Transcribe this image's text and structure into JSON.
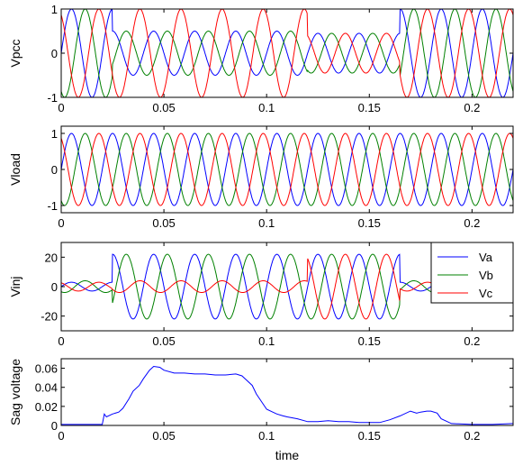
{
  "figure": {
    "xlabel": "time",
    "x_ticks": [
      0,
      0.05,
      0.1,
      0.15,
      0.2
    ],
    "x_tick_labels": [
      "0",
      "0.05",
      "0.1",
      "0.15",
      "0.2"
    ],
    "xlim": [
      0,
      0.22
    ]
  },
  "colors": {
    "Va": "#0000ff",
    "Vb": "#008000",
    "Vc": "#ff0000",
    "sag": "#0000ff"
  },
  "legend": {
    "entries": [
      "Va",
      "Vb",
      "Vc"
    ],
    "placement": "top-right of Vinj panel"
  },
  "chart_data": [
    {
      "type": "line",
      "ylabel": "Vpcc",
      "xlim": [
        0,
        0.22
      ],
      "ylim": [
        -1,
        1
      ],
      "y_ticks": [
        -1,
        0,
        1
      ],
      "y_tick_labels": [
        "-1",
        "0",
        "1"
      ],
      "series": [
        {
          "name": "Va",
          "waveform": {
            "frequency_hz": 50,
            "phase_deg": 0,
            "segments": [
              {
                "x": [
                  0,
                  0.025
                ],
                "amplitude": 1.0
              },
              {
                "x": [
                  0.025,
                  0.12
                ],
                "amplitude": 0.5
              },
              {
                "x": [
                  0.12,
                  0.165
                ],
                "amplitude": 0.45
              },
              {
                "x": [
                  0.165,
                  0.22
                ],
                "amplitude": 1.0
              }
            ]
          }
        },
        {
          "name": "Vb",
          "waveform": {
            "frequency_hz": 50,
            "phase_deg": -120,
            "segments": [
              {
                "x": [
                  0,
                  0.025
                ],
                "amplitude": 1.0
              },
              {
                "x": [
                  0.025,
                  0.12
                ],
                "amplitude": 0.5
              },
              {
                "x": [
                  0.12,
                  0.165
                ],
                "amplitude": 0.45
              },
              {
                "x": [
                  0.165,
                  0.22
                ],
                "amplitude": 1.0
              }
            ]
          }
        },
        {
          "name": "Vc",
          "waveform": {
            "frequency_hz": 50,
            "phase_deg": 120,
            "segments": [
              {
                "x": [
                  0,
                  0.025
                ],
                "amplitude": 1.0
              },
              {
                "x": [
                  0.025,
                  0.12
                ],
                "amplitude": 1.0
              },
              {
                "x": [
                  0.12,
                  0.165
                ],
                "amplitude": 0.45
              },
              {
                "x": [
                  0.165,
                  0.22
                ],
                "amplitude": 1.0
              }
            ]
          }
        }
      ]
    },
    {
      "type": "line",
      "ylabel": "Vload",
      "xlim": [
        0,
        0.22
      ],
      "ylim": [
        -1.2,
        1.2
      ],
      "y_ticks": [
        -1,
        0,
        1
      ],
      "y_tick_labels": [
        "-1",
        "0",
        "1"
      ],
      "series": [
        {
          "name": "Va",
          "waveform": {
            "frequency_hz": 50,
            "phase_deg": 0,
            "segments": [
              {
                "x": [
                  0,
                  0.22
                ],
                "amplitude": 1.0
              }
            ]
          }
        },
        {
          "name": "Vb",
          "waveform": {
            "frequency_hz": 50,
            "phase_deg": -120,
            "segments": [
              {
                "x": [
                  0,
                  0.22
                ],
                "amplitude": 1.0
              }
            ]
          }
        },
        {
          "name": "Vc",
          "waveform": {
            "frequency_hz": 50,
            "phase_deg": 120,
            "segments": [
              {
                "x": [
                  0,
                  0.22
                ],
                "amplitude": 1.0
              }
            ]
          }
        }
      ]
    },
    {
      "type": "line",
      "ylabel": "Vinj",
      "xlim": [
        0,
        0.22
      ],
      "ylim": [
        -30,
        30
      ],
      "y_ticks": [
        -20,
        0,
        20
      ],
      "y_tick_labels": [
        "-20",
        "0",
        "20"
      ],
      "series": [
        {
          "name": "Va",
          "waveform": {
            "frequency_hz": 50,
            "phase_deg": 0,
            "segments": [
              {
                "x": [
                  0,
                  0.025
                ],
                "amplitude": 3
              },
              {
                "x": [
                  0.025,
                  0.12
                ],
                "amplitude": 22
              },
              {
                "x": [
                  0.12,
                  0.165
                ],
                "amplitude": 22
              },
              {
                "x": [
                  0.165,
                  0.22
                ],
                "amplitude": 3
              }
            ]
          }
        },
        {
          "name": "Vb",
          "waveform": {
            "frequency_hz": 50,
            "phase_deg": -120,
            "segments": [
              {
                "x": [
                  0,
                  0.025
                ],
                "amplitude": 4
              },
              {
                "x": [
                  0.025,
                  0.12
                ],
                "amplitude": 22
              },
              {
                "x": [
                  0.12,
                  0.165
                ],
                "amplitude": 22
              },
              {
                "x": [
                  0.165,
                  0.22
                ],
                "amplitude": 4
              }
            ]
          }
        },
        {
          "name": "Vc",
          "waveform": {
            "frequency_hz": 50,
            "phase_deg": 120,
            "segments": [
              {
                "x": [
                  0,
                  0.025
                ],
                "amplitude": 3
              },
              {
                "x": [
                  0.025,
                  0.12
                ],
                "amplitude": 4
              },
              {
                "x": [
                  0.12,
                  0.165
                ],
                "amplitude": 22
              },
              {
                "x": [
                  0.165,
                  0.22
                ],
                "amplitude": 3
              }
            ]
          }
        }
      ]
    },
    {
      "type": "line",
      "ylabel": "Sag voltage",
      "xlim": [
        0,
        0.22
      ],
      "ylim": [
        0,
        0.07
      ],
      "y_ticks": [
        0,
        0.02,
        0.04,
        0.06
      ],
      "y_tick_labels": [
        "0",
        "0.02",
        "0.04",
        "0.06"
      ],
      "series": [
        {
          "x": [
            0,
            0.005,
            0.01,
            0.015,
            0.02,
            0.021,
            0.022,
            0.025,
            0.028,
            0.03,
            0.033,
            0.035,
            0.038,
            0.04,
            0.043,
            0.045,
            0.048,
            0.05,
            0.055,
            0.06,
            0.065,
            0.07,
            0.075,
            0.08,
            0.085,
            0.088,
            0.09,
            0.093,
            0.095,
            0.1,
            0.103,
            0.105,
            0.108,
            0.11,
            0.115,
            0.12,
            0.125,
            0.13,
            0.135,
            0.14,
            0.145,
            0.15,
            0.155,
            0.16,
            0.165,
            0.17,
            0.173,
            0.175,
            0.178,
            0.18,
            0.183,
            0.185,
            0.19,
            0.2,
            0.21,
            0.22
          ],
          "y": [
            0.001,
            0.001,
            0.001,
            0.001,
            0.001,
            0.012,
            0.009,
            0.012,
            0.014,
            0.018,
            0.028,
            0.036,
            0.042,
            0.049,
            0.058,
            0.062,
            0.061,
            0.058,
            0.055,
            0.055,
            0.054,
            0.054,
            0.053,
            0.053,
            0.054,
            0.052,
            0.048,
            0.042,
            0.033,
            0.017,
            0.014,
            0.012,
            0.01,
            0.009,
            0.007,
            0.004,
            0.004,
            0.005,
            0.004,
            0.004,
            0.003,
            0.003,
            0.003,
            0.006,
            0.01,
            0.015,
            0.013,
            0.014,
            0.015,
            0.015,
            0.013,
            0.007,
            0.002,
            0.001,
            0.001,
            0.002
          ]
        }
      ]
    }
  ]
}
